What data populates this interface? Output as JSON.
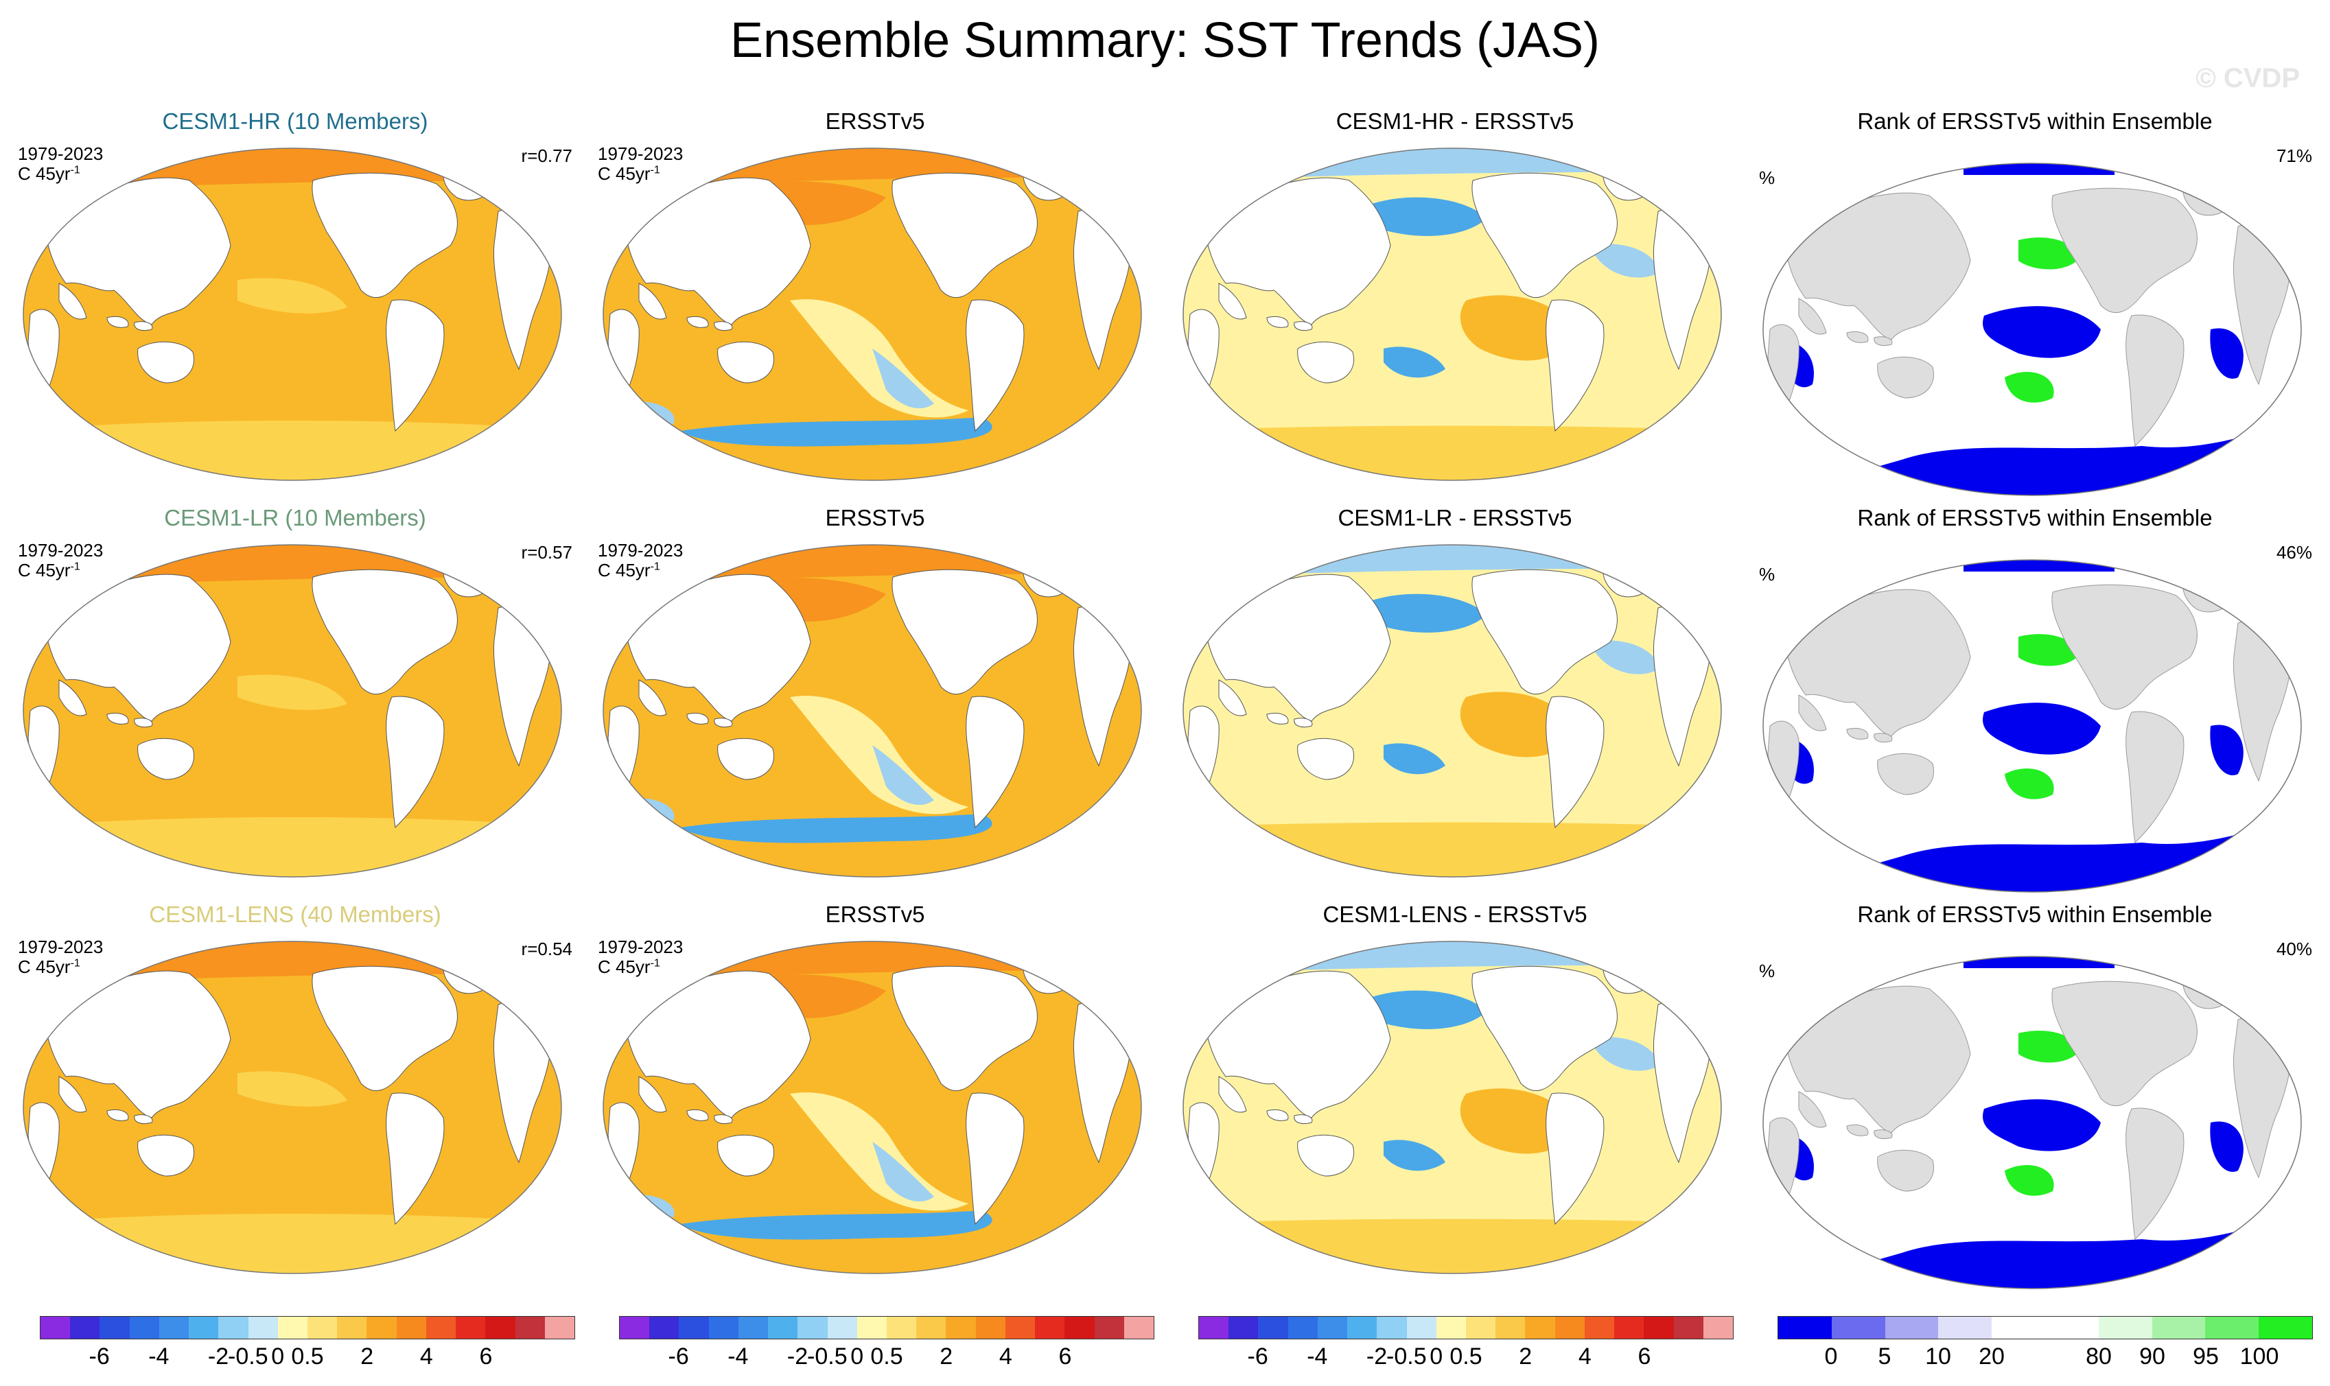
{
  "figure": {
    "title": "Ensemble Summary: SST Trends (JAS)",
    "watermark": "© CVDP"
  },
  "colors": {
    "ocean_warm": "#f9b82a",
    "ocean_mid": "#fcd34d",
    "ocean_pale": "#fff3a3",
    "ocean_hot": "#f7931e",
    "ocean_red": "#f15a24",
    "ocean_cool": "#9fd0f0",
    "ocean_blue": "#4aa8e8",
    "rank_blue": "#0000ee",
    "rank_green": "#22ee22",
    "land_gray": "#dedede",
    "title_hr": "#1f6e8c",
    "title_lr": "#6a9a78",
    "title_lens": "#d9cc7a"
  },
  "rows": [
    {
      "model": {
        "title": "CESM1-HR (10 Members)",
        "period": "1979-2023",
        "units": "C 45yr",
        "units_sup": "-1",
        "r": "r=0.77"
      },
      "obs": {
        "title": "ERSSTv5",
        "period": "1979-2023",
        "units": "C 45yr",
        "units_sup": "-1"
      },
      "diff": {
        "title": "CESM1-HR - ERSSTv5"
      },
      "rank": {
        "title": "Rank of ERSSTv5 within Ensemble",
        "units": "%",
        "pct": "71%"
      }
    },
    {
      "model": {
        "title": "CESM1-LR (10 Members)",
        "period": "1979-2023",
        "units": "C 45yr",
        "units_sup": "-1",
        "r": "r=0.57"
      },
      "obs": {
        "title": "ERSSTv5",
        "period": "1979-2023",
        "units": "C 45yr",
        "units_sup": "-1"
      },
      "diff": {
        "title": "CESM1-LR - ERSSTv5"
      },
      "rank": {
        "title": "Rank of ERSSTv5 within Ensemble",
        "units": "%",
        "pct": "46%"
      }
    },
    {
      "model": {
        "title": "CESM1-LENS (40 Members)",
        "period": "1979-2023",
        "units": "C 45yr",
        "units_sup": "-1",
        "r": "r=0.54"
      },
      "obs": {
        "title": "ERSSTv5",
        "period": "1979-2023",
        "units": "C 45yr",
        "units_sup": "-1"
      },
      "diff": {
        "title": "CESM1-LENS - ERSSTv5"
      },
      "rank": {
        "title": "Rank of ERSSTv5 within Ensemble",
        "units": "%",
        "pct": "40%"
      }
    }
  ],
  "colorbars": {
    "trend": {
      "colors": [
        "#8a2be2",
        "#3b2bd8",
        "#2b50e0",
        "#2f6fe6",
        "#3c8ee8",
        "#4fb0ee",
        "#8fd0f4",
        "#c8e7f7",
        "#fff9b0",
        "#fde27a",
        "#fbc94a",
        "#f9a825",
        "#f68a1e",
        "#f15a24",
        "#e52b1f",
        "#d41818",
        "#c2323a",
        "#f4a3a3"
      ],
      "ticks": [
        "-6",
        "-4",
        "-2",
        "-0.5",
        "0",
        "0.5",
        "2",
        "4",
        "6"
      ]
    },
    "rank": {
      "colors": [
        "#0000ee",
        "#6b6bf0",
        "#a8a8f2",
        "#e0e0fa",
        "#ffffff",
        "#ffffff",
        "#e0fae0",
        "#a8f2a8",
        "#6bee6b",
        "#22ee22"
      ],
      "ticks": [
        "0",
        "5",
        "10",
        "20",
        "80",
        "90",
        "95",
        "100"
      ]
    }
  },
  "chart_data": [
    {
      "type": "heatmap",
      "title": "CESM1-HR (10 Members)",
      "field": "SST trend JAS 1979-2023",
      "units": "C 45yr-1",
      "pattern_correlation": 0.77,
      "color_levels": [
        -6,
        -5,
        -4,
        -3,
        -2,
        -1,
        -0.5,
        -0.25,
        0,
        0.25,
        0.5,
        1,
        2,
        3,
        4,
        5,
        6
      ]
    },
    {
      "type": "heatmap",
      "title": "ERSSTv5",
      "field": "SST trend JAS 1979-2023",
      "units": "C 45yr-1"
    },
    {
      "type": "heatmap",
      "title": "CESM1-HR - ERSSTv5",
      "field": "trend difference"
    },
    {
      "type": "heatmap",
      "title": "Rank of ERSSTv5 within Ensemble",
      "units": "%",
      "area_percent": 71,
      "color_levels": [
        0,
        5,
        10,
        20,
        80,
        90,
        95,
        100
      ]
    },
    {
      "type": "heatmap",
      "title": "CESM1-LR (10 Members)",
      "field": "SST trend JAS 1979-2023",
      "units": "C 45yr-1",
      "pattern_correlation": 0.57
    },
    {
      "type": "heatmap",
      "title": "ERSSTv5",
      "field": "SST trend JAS 1979-2023",
      "units": "C 45yr-1"
    },
    {
      "type": "heatmap",
      "title": "CESM1-LR - ERSSTv5",
      "field": "trend difference"
    },
    {
      "type": "heatmap",
      "title": "Rank of ERSSTv5 within Ensemble",
      "units": "%",
      "area_percent": 46
    },
    {
      "type": "heatmap",
      "title": "CESM1-LENS (40 Members)",
      "field": "SST trend JAS 1979-2023",
      "units": "C 45yr-1",
      "pattern_correlation": 0.54
    },
    {
      "type": "heatmap",
      "title": "ERSSTv5",
      "field": "SST trend JAS 1979-2023",
      "units": "C 45yr-1"
    },
    {
      "type": "heatmap",
      "title": "CESM1-LENS - ERSSTv5",
      "field": "trend difference"
    },
    {
      "type": "heatmap",
      "title": "Rank of ERSSTv5 within Ensemble",
      "units": "%",
      "area_percent": 40
    }
  ]
}
